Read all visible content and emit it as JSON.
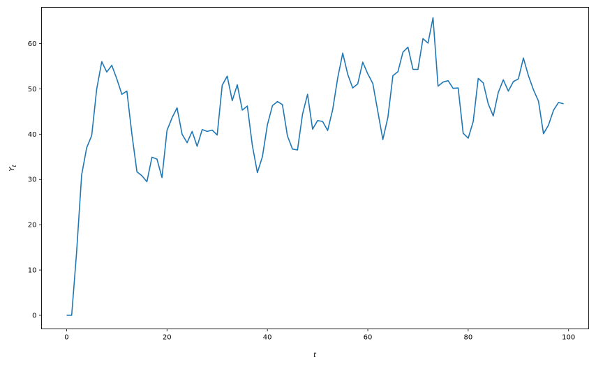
{
  "chart_data": {
    "type": "line",
    "title": "",
    "xlabel": "t",
    "ylabel_main": "Y",
    "ylabel_sub": "t",
    "xlim": [
      -5,
      104
    ],
    "ylim": [
      -3,
      68
    ],
    "xticks": [
      0,
      20,
      40,
      60,
      80,
      100
    ],
    "yticks": [
      0,
      10,
      20,
      30,
      40,
      50,
      60
    ],
    "grid": false,
    "line_color": "#1f77b4",
    "x": [
      0,
      1,
      2,
      3,
      4,
      5,
      6,
      7,
      8,
      9,
      10,
      11,
      12,
      13,
      14,
      15,
      16,
      17,
      18,
      19,
      20,
      21,
      22,
      23,
      24,
      25,
      26,
      27,
      28,
      29,
      30,
      31,
      32,
      33,
      34,
      35,
      36,
      37,
      38,
      39,
      40,
      41,
      42,
      43,
      44,
      45,
      46,
      47,
      48,
      49,
      50,
      51,
      52,
      53,
      54,
      55,
      56,
      57,
      58,
      59,
      60,
      61,
      62,
      63,
      64,
      65,
      66,
      67,
      68,
      69,
      70,
      71,
      72,
      73,
      74,
      75,
      76,
      77,
      78,
      79,
      80,
      81,
      82,
      83,
      84,
      85,
      86,
      87,
      88,
      89,
      90,
      91,
      92,
      93,
      94,
      95,
      96,
      97,
      98,
      99
    ],
    "y": [
      0,
      0,
      14,
      31,
      37,
      39.7,
      50,
      56,
      53.7,
      55.2,
      52.2,
      48.8,
      49.5,
      40,
      31.7,
      30.8,
      29.5,
      34.9,
      34.5,
      30.4,
      40.8,
      43.6,
      45.8,
      40,
      38.1,
      40.6,
      37.3,
      41,
      40.6,
      40.9,
      39.8,
      50.8,
      52.8,
      47.4,
      50.9,
      45.3,
      46.2,
      37.5,
      31.5,
      35,
      42.1,
      46.3,
      47.2,
      46.5,
      39.6,
      36.7,
      36.5,
      44.4,
      48.8,
      41.1,
      43,
      42.8,
      40.8,
      45.4,
      52.4,
      57.9,
      53.2,
      50.2,
      51.1,
      55.9,
      53.3,
      51.2,
      45,
      38.8,
      43.7,
      52.9,
      53.8,
      58.1,
      59.2,
      54.3,
      54.3,
      61.1,
      60.1,
      65.7,
      50.6,
      51.5,
      51.8,
      50.1,
      50.2,
      40.2,
      39.1,
      42.8,
      52.3,
      51.3,
      46.7,
      44,
      49.2,
      52,
      49.5,
      51.6,
      52.2,
      56.8,
      52.9,
      49.8,
      47.3,
      40.1,
      42,
      45.3,
      47,
      46.7
    ]
  }
}
